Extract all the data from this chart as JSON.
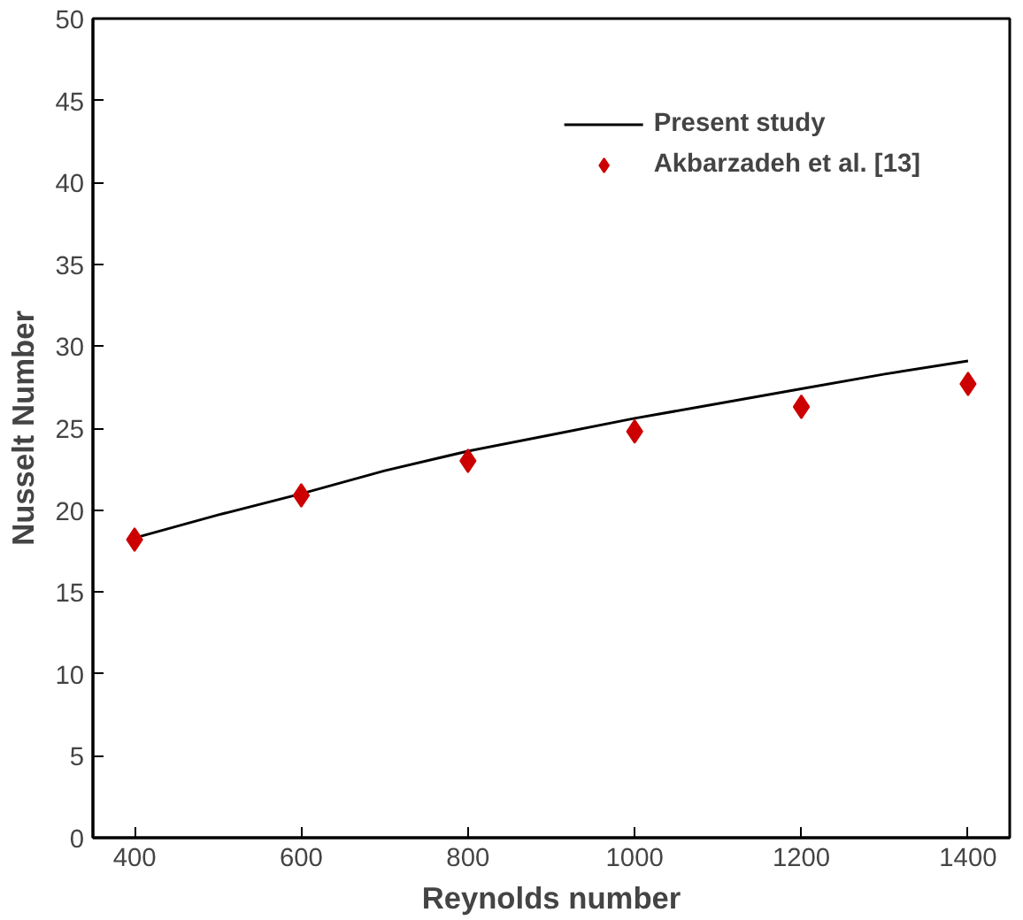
{
  "chart_data": {
    "type": "line",
    "xlabel": "Reynolds number",
    "ylabel": "Nusselt Number",
    "xlim": [
      350,
      1450
    ],
    "ylim": [
      0,
      50
    ],
    "xticks": [
      400,
      600,
      800,
      1000,
      1200,
      1400
    ],
    "yticks": [
      0,
      5,
      10,
      15,
      20,
      25,
      30,
      35,
      40,
      45,
      50
    ],
    "grid": false,
    "legend": "top right",
    "series": [
      {
        "name": "Present study",
        "color": "#000000",
        "x": [
          400,
          500,
          600,
          700,
          800,
          900,
          1000,
          1100,
          1200,
          1300,
          1400
        ],
        "values": [
          18.3,
          19.7,
          21.0,
          22.4,
          23.6,
          24.6,
          25.6,
          26.5,
          27.4,
          28.3,
          29.1
        ]
      },
      {
        "name": "Akbarzadeh et al. [13]",
        "type": "scatter",
        "marker": "diamond",
        "color": "#cc0000",
        "x": [
          400,
          600,
          800,
          1000,
          1200,
          1400
        ],
        "values": [
          18.2,
          20.9,
          23.0,
          24.8,
          26.3,
          27.7
        ]
      }
    ]
  }
}
